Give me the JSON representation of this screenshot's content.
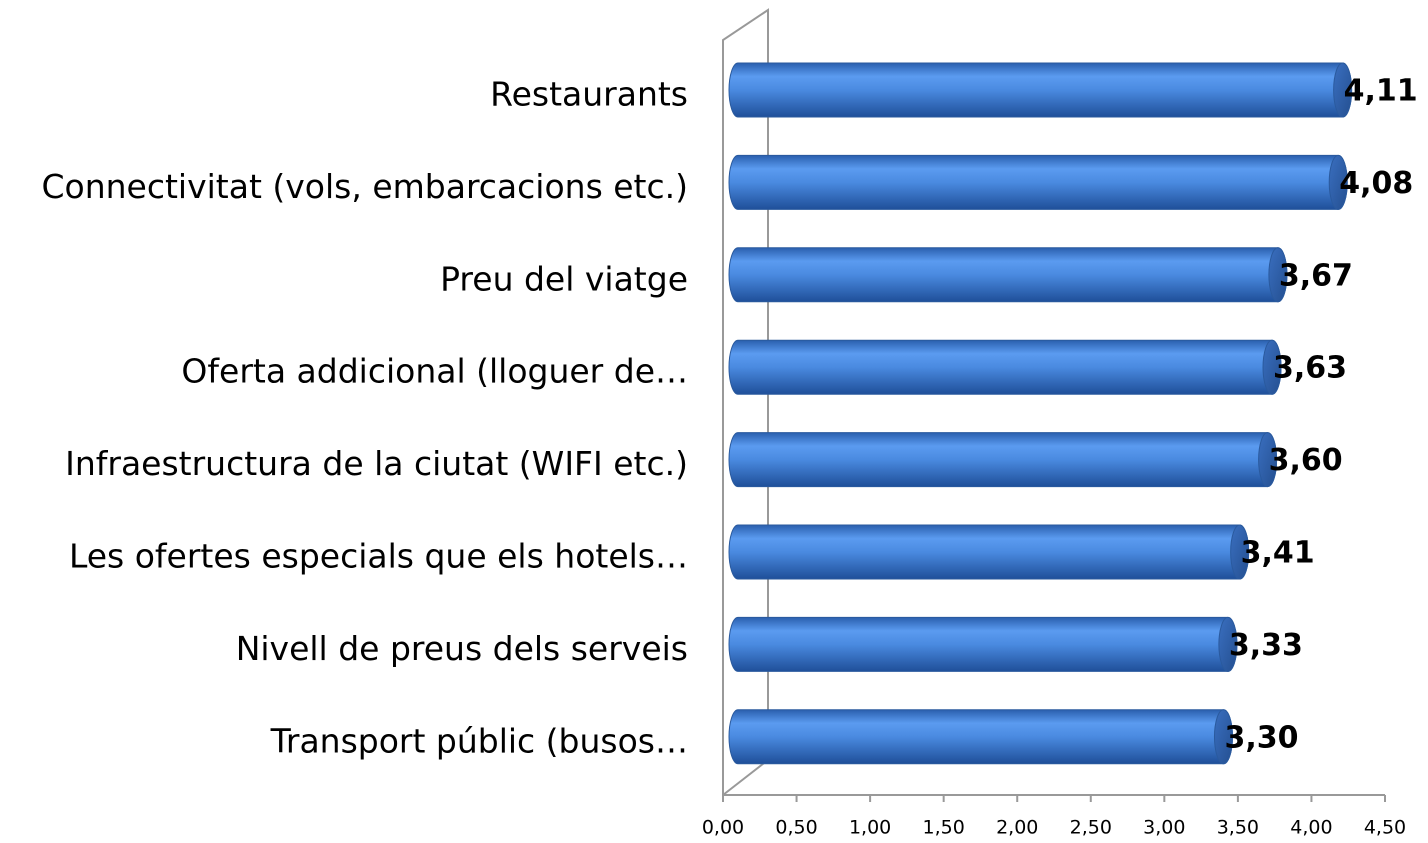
{
  "chart_data": {
    "type": "bar",
    "orientation": "horizontal",
    "categories": [
      "Restaurants",
      "Connectivitat (vols, embarcacions etc.)",
      "Preu del viatge",
      "Oferta addicional (lloguer de…",
      "Infraestructura de la ciutat (WIFI etc.)",
      "Les ofertes especials que els hotels…",
      "Nivell de preus dels serveis",
      "Transport públic (busos…"
    ],
    "values": [
      4.11,
      4.08,
      3.67,
      3.63,
      3.6,
      3.41,
      3.33,
      3.3
    ],
    "value_labels": [
      "4,11",
      "4,08",
      "3,67",
      "3,63",
      "3,60",
      "3,41",
      "3,33",
      "3,30"
    ],
    "color": "#4a8ae0",
    "xlim": [
      0,
      4.5
    ],
    "xticks": [
      {
        "value": 0,
        "label": "0,00"
      },
      {
        "value": 0.5,
        "label": "0,50"
      },
      {
        "value": 1,
        "label": "1,00"
      },
      {
        "value": 1.5,
        "label": "1,50"
      },
      {
        "value": 2,
        "label": "2,00"
      },
      {
        "value": 2.5,
        "label": "2,50"
      },
      {
        "value": 3,
        "label": "3,00"
      },
      {
        "value": 3.5,
        "label": "3,50"
      },
      {
        "value": 4,
        "label": "4,00"
      },
      {
        "value": 4.5,
        "label": "4,50"
      }
    ]
  }
}
